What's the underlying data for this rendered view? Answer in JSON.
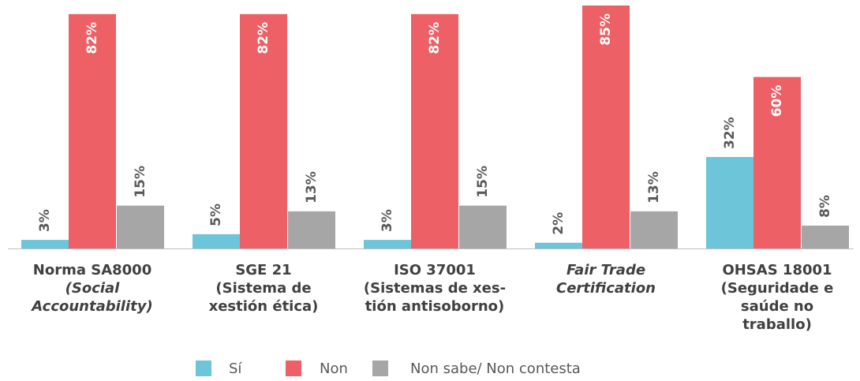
{
  "chart_data": {
    "type": "bar",
    "categories": [
      [
        "Norma SA8000",
        "(Social",
        "Accountability)"
      ],
      [
        "SGE 21",
        "(Sistema de",
        "xestión ética)"
      ],
      [
        "ISO 37001",
        "(Sistemas de xes-",
        "tión antisoborno)"
      ],
      [
        "Fair Trade",
        "Certification"
      ],
      [
        "OHSAS 18001",
        "(Seguridade e",
        "saúde no",
        "traballo)"
      ]
    ],
    "series": [
      {
        "name": "Sí",
        "color": "#6cc5d8",
        "values": [
          3,
          5,
          3,
          2,
          32
        ],
        "value_labels": [
          "3%",
          "5%",
          "3%",
          "2%",
          "32%"
        ]
      },
      {
        "name": "Non",
        "color": "#ec6066",
        "values": [
          82,
          82,
          82,
          85,
          60
        ],
        "value_labels": [
          "82%",
          "82%",
          "82%",
          "85%",
          "60%"
        ]
      },
      {
        "name": "Non sabe/ Non contesta",
        "color": "#a6a6a6",
        "values": [
          15,
          13,
          15,
          13,
          8
        ],
        "value_labels": [
          "15%",
          "13%",
          "15%",
          "13%",
          "8%"
        ]
      }
    ]
  }
}
